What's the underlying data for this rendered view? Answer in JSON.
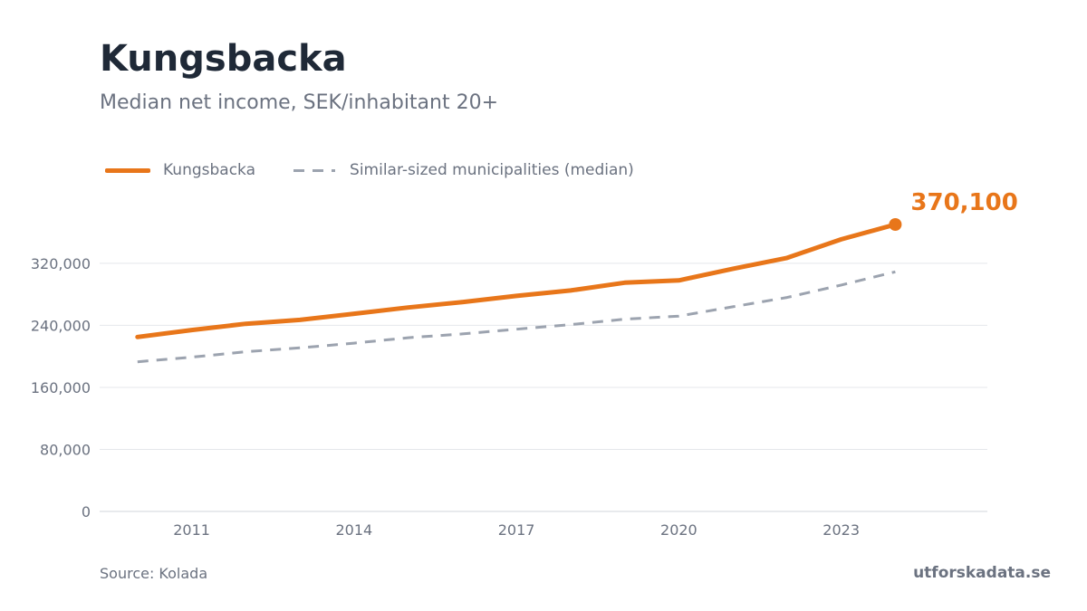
{
  "header": {
    "title": "Kungsbacka",
    "subtitle": "Median net income, SEK/inhabitant 20+"
  },
  "footer": {
    "source": "Source: Kolada",
    "brand": "utforskadata.se"
  },
  "colors": {
    "primary": "#e8761a",
    "comparison": "#9ca3af",
    "grid": "#e5e7eb",
    "text": "#6b7280"
  },
  "chart_data": {
    "type": "line",
    "title": "Kungsbacka",
    "subtitle": "Median net income, SEK/inhabitant 20+",
    "xlabel": "",
    "ylabel": "",
    "x": [
      2010,
      2011,
      2012,
      2013,
      2014,
      2015,
      2016,
      2017,
      2018,
      2019,
      2020,
      2021,
      2022,
      2023,
      2024
    ],
    "x_ticks": [
      "2011",
      "2014",
      "2017",
      "2020",
      "2023"
    ],
    "y_ticks": [
      "0",
      "80,000",
      "160,000",
      "240,000",
      "320,000"
    ],
    "xlim": [
      2009.3,
      2025.7
    ],
    "ylim": [
      0,
      370100
    ],
    "grid": true,
    "legend_position": "top-left",
    "series": [
      {
        "name": "Kungsbacka",
        "style": "solid",
        "color": "#e8761a",
        "values": [
          225000,
          234000,
          242000,
          247000,
          255000,
          263000,
          270000,
          278000,
          285000,
          295000,
          298000,
          313000,
          327000,
          351000,
          370100
        ]
      },
      {
        "name": "Similar-sized municipalities (median)",
        "style": "dashed",
        "color": "#9ca3af",
        "values": [
          193000,
          199000,
          206000,
          211000,
          217000,
          224000,
          229000,
          235000,
          241000,
          248000,
          252000,
          264000,
          276000,
          292000,
          309000
        ]
      }
    ],
    "end_label": "370,100"
  }
}
